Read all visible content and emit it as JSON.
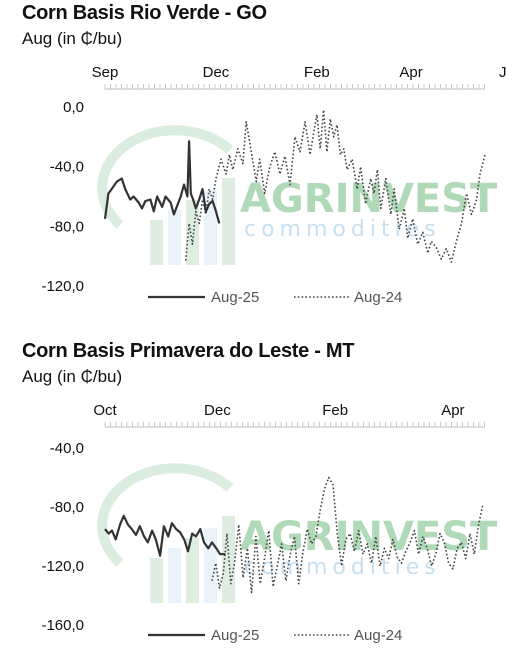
{
  "watermark": {
    "brand": "AGRINVEST",
    "sub": "commodities",
    "colors": [
      "#8fc99a",
      "#b9d8ee"
    ]
  },
  "chart_data": [
    {
      "type": "line",
      "title": "Corn Basis Rio Verde - GO",
      "ylabel": "Aug (in ₵/bu)",
      "ylim": [
        -120,
        0
      ],
      "yticks": [
        0,
        -40,
        -80,
        -120
      ],
      "ytick_labels": [
        "0,0",
        "-40,0",
        "-80,0",
        "-120,0"
      ],
      "xlim": [
        0,
        11.3
      ],
      "xticks": [
        0,
        3.3,
        6.3,
        9.1,
        12
      ],
      "xtick_labels": [
        "Sep",
        "Dec",
        "Feb",
        "Apr",
        "Jul"
      ],
      "legend": "bottom",
      "grid": false,
      "series": [
        {
          "name": "Aug-25",
          "style": "solid",
          "color": "#333333",
          "x": [
            0,
            0.1,
            0.2,
            0.35,
            0.5,
            0.6,
            0.75,
            0.85,
            1.0,
            1.1,
            1.2,
            1.35,
            1.45,
            1.55,
            1.7,
            1.8,
            1.95,
            2.05,
            2.15,
            2.25,
            2.35,
            2.45,
            2.5,
            2.55,
            2.62,
            2.7,
            2.8,
            2.9,
            3.0,
            3.1,
            3.2,
            3.3,
            3.4
          ],
          "y": [
            -75,
            -58,
            -55,
            -50,
            -48,
            -55,
            -62,
            -60,
            -64,
            -68,
            -63,
            -62,
            -70,
            -60,
            -67,
            -60,
            -64,
            -72,
            -66,
            -60,
            -52,
            -60,
            -23,
            -58,
            -62,
            -68,
            -62,
            -55,
            -70,
            -65,
            -63,
            -70,
            -78
          ]
        },
        {
          "name": "Aug-24",
          "style": "dotted",
          "color": "#444444",
          "x": [
            2.4,
            2.5,
            2.6,
            2.7,
            2.8,
            2.9,
            3.0,
            3.1,
            3.2,
            3.3,
            3.45,
            3.6,
            3.7,
            3.8,
            3.95,
            4.1,
            4.2,
            4.35,
            4.5,
            4.6,
            4.75,
            4.9,
            5.05,
            5.2,
            5.35,
            5.5,
            5.65,
            5.8,
            5.95,
            6.1,
            6.2,
            6.3,
            6.4,
            6.5,
            6.6,
            6.7,
            6.8,
            6.9,
            7.0,
            7.1,
            7.2,
            7.35,
            7.5,
            7.6,
            7.75,
            7.9,
            8.0,
            8.1,
            8.2,
            8.35,
            8.5,
            8.6,
            8.75,
            8.9,
            9.0,
            9.15,
            9.3,
            9.45,
            9.6,
            9.7,
            9.85,
            10.0,
            10.15,
            10.3,
            10.45,
            10.6,
            10.75,
            10.9,
            11.05,
            11.15,
            11.3
          ],
          "y": [
            -103,
            -78,
            -92,
            -70,
            -78,
            -62,
            -72,
            -55,
            -62,
            -48,
            -35,
            -45,
            -32,
            -42,
            -28,
            -38,
            -10,
            -30,
            -50,
            -35,
            -58,
            -40,
            -30,
            -45,
            -33,
            -52,
            -20,
            -30,
            -10,
            -32,
            -18,
            -5,
            -28,
            -2,
            -30,
            -8,
            -20,
            -12,
            -32,
            -28,
            -42,
            -35,
            -55,
            -40,
            -65,
            -48,
            -58,
            -42,
            -68,
            -48,
            -72,
            -55,
            -82,
            -68,
            -88,
            -75,
            -92,
            -84,
            -98,
            -90,
            -94,
            -102,
            -95,
            -104,
            -90,
            -78,
            -58,
            -72,
            -62,
            -45,
            -32
          ]
        }
      ]
    },
    {
      "type": "line",
      "title": "Corn Basis Primavera do Leste - MT",
      "ylabel": "Aug (in ₵/bu)",
      "ylim": [
        -160,
        -40
      ],
      "yticks": [
        -40,
        -80,
        -120,
        -160
      ],
      "ytick_labels": [
        "-40,0",
        "-80,0",
        "-120,0",
        "-160,0"
      ],
      "xlim": [
        0,
        7.1
      ],
      "xticks": [
        0,
        2.1,
        4.3,
        6.5
      ],
      "xtick_labels": [
        "Oct",
        "Dec",
        "Feb",
        "Apr"
      ],
      "legend": "bottom",
      "grid": false,
      "series": [
        {
          "name": "Aug-25",
          "style": "solid",
          "color": "#333333",
          "x": [
            0,
            0.07,
            0.13,
            0.2,
            0.28,
            0.35,
            0.43,
            0.5,
            0.58,
            0.65,
            0.73,
            0.8,
            0.88,
            0.95,
            1.03,
            1.1,
            1.18,
            1.25,
            1.33,
            1.4,
            1.48,
            1.55,
            1.63,
            1.7,
            1.78,
            1.85,
            1.93,
            2.0,
            2.08,
            2.15,
            2.25
          ],
          "y": [
            -95,
            -98,
            -96,
            -102,
            -92,
            -86,
            -92,
            -95,
            -99,
            -93,
            -100,
            -104,
            -96,
            -102,
            -113,
            -93,
            -100,
            -91,
            -95,
            -97,
            -102,
            -110,
            -98,
            -100,
            -95,
            -104,
            -108,
            -104,
            -108,
            -112,
            -112
          ]
        },
        {
          "name": "Aug-24",
          "style": "dotted",
          "color": "#444444",
          "x": [
            2.0,
            2.07,
            2.14,
            2.21,
            2.28,
            2.35,
            2.42,
            2.5,
            2.58,
            2.66,
            2.74,
            2.82,
            2.9,
            2.98,
            3.06,
            3.14,
            3.22,
            3.3,
            3.38,
            3.46,
            3.54,
            3.62,
            3.7,
            3.78,
            3.86,
            3.94,
            4.02,
            4.1,
            4.18,
            4.26,
            4.34,
            4.42,
            4.5,
            4.58,
            4.66,
            4.74,
            4.82,
            4.9,
            4.98,
            5.06,
            5.14,
            5.22,
            5.3,
            5.38,
            5.46,
            5.54,
            5.62,
            5.7,
            5.78,
            5.86,
            5.94,
            6.02,
            6.1,
            6.18,
            6.26,
            6.34,
            6.42,
            6.5,
            6.58,
            6.66,
            6.74,
            6.82,
            6.9,
            6.98,
            7.06
          ],
          "y": [
            -130,
            -118,
            -135,
            -125,
            -98,
            -132,
            -118,
            -92,
            -128,
            -108,
            -138,
            -100,
            -132,
            -115,
            -96,
            -134,
            -120,
            -105,
            -130,
            -112,
            -100,
            -132,
            -110,
            -95,
            -105,
            -100,
            -82,
            -68,
            -60,
            -65,
            -98,
            -120,
            -102,
            -98,
            -110,
            -96,
            -112,
            -105,
            -118,
            -100,
            -120,
            -108,
            -115,
            -102,
            -114,
            -118,
            -110,
            -104,
            -96,
            -112,
            -100,
            -108,
            -120,
            -112,
            -98,
            -104,
            -118,
            -122,
            -108,
            -104,
            -115,
            -98,
            -112,
            -92,
            -78
          ]
        }
      ]
    }
  ]
}
